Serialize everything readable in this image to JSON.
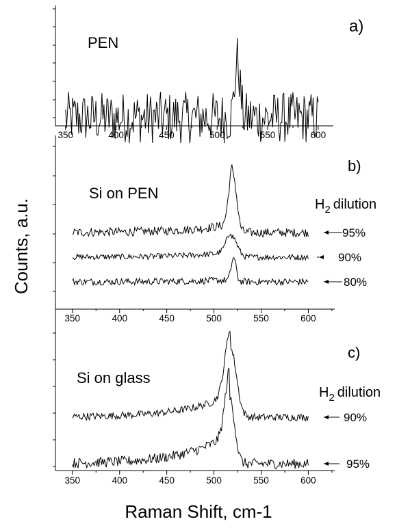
{
  "figure": {
    "ylabel": "Counts, a.u.",
    "xlabel": "Raman Shift, cm-1"
  },
  "chart_data": [
    {
      "type": "line",
      "panel_label": "a)",
      "title": "PEN",
      "xlim": [
        340,
        615
      ],
      "xticks": [
        350,
        400,
        450,
        500,
        550,
        600
      ],
      "series": [
        {
          "trace": "pen",
          "baseline_y": 0,
          "peak_x": 520,
          "peak_height": 1.0,
          "peak_width": 2.5,
          "tail": 0,
          "noise": 0.45,
          "x_start": 350,
          "x_end": 600
        }
      ]
    },
    {
      "type": "line",
      "panel_label": "b)",
      "title": "Si on PEN",
      "dilution_label": "dilution",
      "dilution_prefix": "H",
      "dilution_sub": "2",
      "xlim": [
        332,
        628
      ],
      "xticks": [
        350,
        400,
        450,
        500,
        550,
        600
      ],
      "series": [
        {
          "name": "95%",
          "baseline_y": 2.0,
          "peak_x": 520,
          "peak_height": 2.4,
          "peak_width": 4.0,
          "tail": 0.35,
          "noise": 0.18,
          "x_start": 350,
          "x_end": 600
        },
        {
          "name": "90%",
          "baseline_y": 1.0,
          "peak_x": 519,
          "peak_height": 0.85,
          "peak_width": 5.5,
          "tail": 0.2,
          "noise": 0.12,
          "x_start": 350,
          "x_end": 600
        },
        {
          "name": "80%",
          "baseline_y": 0.0,
          "peak_x": 521,
          "peak_height": 0.95,
          "peak_width": 2.5,
          "tail": 0.08,
          "noise": 0.14,
          "x_start": 350,
          "x_end": 600
        }
      ]
    },
    {
      "type": "line",
      "panel_label": "c)",
      "title": "Si on glass",
      "dilution_label": "dilution",
      "dilution_prefix": "H",
      "dilution_sub": "2",
      "xlim": [
        332,
        628
      ],
      "xticks": [
        350,
        400,
        450,
        500,
        550,
        600
      ],
      "series": [
        {
          "name": "90%",
          "baseline_y": 2.0,
          "peak_x": 518,
          "peak_height": 2.9,
          "peak_width": 6.0,
          "tail": 1.0,
          "noise": 0.16,
          "x_start": 350,
          "x_end": 600
        },
        {
          "name": "95%",
          "baseline_y": 0.0,
          "peak_x": 517,
          "peak_height": 2.8,
          "peak_width": 5.0,
          "tail": 1.3,
          "noise": 0.22,
          "x_start": 350,
          "x_end": 600
        }
      ]
    }
  ]
}
